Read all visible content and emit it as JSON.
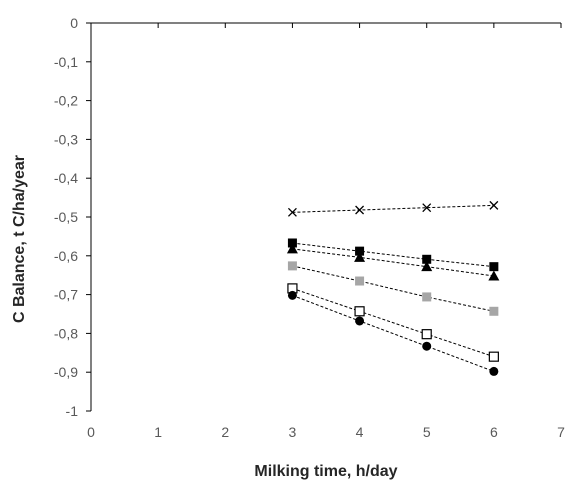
{
  "chart_data": {
    "type": "scatter",
    "title": "",
    "xlabel": "Milking time, h/day",
    "ylabel": "C Balance, t C/ha/year",
    "xlim": [
      0,
      7
    ],
    "ylim": [
      -1,
      0
    ],
    "x_ticks": [
      0,
      1,
      2,
      3,
      4,
      5,
      6,
      7
    ],
    "y_ticks": [
      0,
      -0.1,
      -0.2,
      -0.3,
      -0.4,
      -0.5,
      -0.6,
      -0.7,
      -0.8,
      -0.9,
      -1
    ],
    "y_tick_labels": [
      "0",
      "-0,1",
      "-0,2",
      "-0,3",
      "-0,4",
      "-0,5",
      "-0,6",
      "-0,7",
      "-0,8",
      "-0,9",
      "-1"
    ],
    "grid": false,
    "x_axis_position": "top",
    "line_style": "dashed",
    "series": [
      {
        "marker": "x",
        "color": "#000000",
        "x": [
          3,
          4,
          5,
          6
        ],
        "y": [
          -0.488,
          -0.482,
          -0.476,
          -0.47
        ]
      },
      {
        "marker": "filled-square",
        "color": "#000000",
        "x": [
          3,
          4,
          5,
          6
        ],
        "y": [
          -0.567,
          -0.588,
          -0.609,
          -0.628
        ]
      },
      {
        "marker": "filled-triangle",
        "color": "#000000",
        "x": [
          3,
          4,
          5,
          6
        ],
        "y": [
          -0.582,
          -0.604,
          -0.628,
          -0.652
        ]
      },
      {
        "marker": "filled-square",
        "color": "#a6a6a6",
        "x": [
          3,
          4,
          5,
          6
        ],
        "y": [
          -0.626,
          -0.665,
          -0.706,
          -0.743
        ]
      },
      {
        "marker": "open-square",
        "color": "#000000",
        "x": [
          3,
          4,
          5,
          6
        ],
        "y": [
          -0.684,
          -0.743,
          -0.802,
          -0.86
        ]
      },
      {
        "marker": "circle",
        "color": "#000000",
        "x": [
          3,
          4,
          5,
          6
        ],
        "y": [
          -0.702,
          -0.768,
          -0.833,
          -0.898
        ]
      }
    ]
  }
}
